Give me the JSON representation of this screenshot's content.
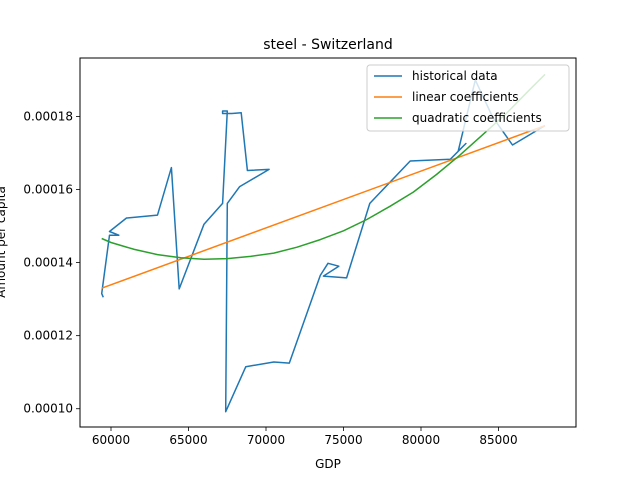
{
  "chart_data": {
    "type": "line",
    "title": "steel - Switzerland",
    "xlabel": "GDP",
    "ylabel": "Amount per capita",
    "xlim": [
      58000,
      90000
    ],
    "ylim": [
      9.5e-05,
      0.000196
    ],
    "xticks": [
      60000,
      65000,
      70000,
      75000,
      80000,
      85000
    ],
    "xtick_labels": [
      "60000",
      "65000",
      "70000",
      "75000",
      "80000",
      "85000"
    ],
    "yticks": [
      0.0001,
      0.00012,
      0.00014,
      0.00016,
      0.00018
    ],
    "ytick_labels": [
      "0.00010",
      "0.00012",
      "0.00014",
      "0.00016",
      "0.00018"
    ],
    "grid": false,
    "legend_position": "top-right",
    "series": [
      {
        "name": "historical data",
        "color": "#1f77b4",
        "x": [
          59500,
          59400,
          59900,
          60500,
          59900,
          61000,
          63000,
          63900,
          64400,
          66000,
          67200,
          67500,
          67200,
          67200,
          67800,
          68400,
          68800,
          70200,
          68300,
          67500,
          67400,
          68700,
          70500,
          71500,
          73500,
          74000,
          74700,
          73700,
          75200,
          76700,
          79300,
          81900,
          82900,
          82400,
          83500,
          84600,
          85900,
          88000
        ],
        "y": [
          0.0001305,
          0.0001315,
          0.0001475,
          0.0001475,
          0.0001485,
          0.0001522,
          0.000153,
          0.000166,
          0.0001328,
          0.0001505,
          0.0001562,
          0.0001815,
          0.0001815,
          0.0001808,
          0.0001808,
          0.000181,
          0.0001652,
          0.0001655,
          0.0001608,
          0.0001562,
          9.92e-05,
          0.0001115,
          0.0001128,
          0.0001125,
          0.0001365,
          0.0001398,
          0.000139,
          0.0001363,
          0.0001358,
          0.0001562,
          0.0001678,
          0.0001683,
          0.0001726,
          0.0001705,
          0.00019,
          0.00018,
          0.0001722,
          0.0001775
        ]
      },
      {
        "name": "linear coefficients",
        "color": "#ff7f0e",
        "x": [
          59400,
          88000
        ],
        "y": [
          0.000133,
          0.0001775
        ]
      },
      {
        "name": "quadratic coefficients",
        "color": "#2ca02c",
        "x": [
          59400,
          60000,
          61500,
          63000,
          64500,
          66000,
          67500,
          69000,
          70500,
          72000,
          73500,
          75000,
          76500,
          78000,
          79500,
          81000,
          82500,
          84000,
          85500,
          87000,
          88000
        ],
        "y": [
          0.0001466,
          0.0001455,
          0.0001436,
          0.0001422,
          0.0001413,
          0.0001409,
          0.0001411,
          0.0001417,
          0.0001426,
          0.0001442,
          0.0001463,
          0.0001487,
          0.0001518,
          0.0001554,
          0.0001593,
          0.0001641,
          0.0001694,
          0.0001751,
          0.0001808,
          0.0001873,
          0.0001915
        ]
      }
    ]
  }
}
